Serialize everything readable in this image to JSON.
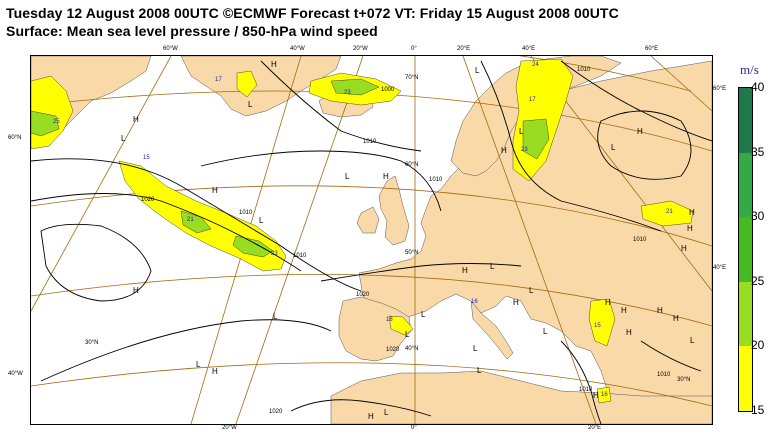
{
  "title_line1": "Tuesday 12 August 2008 00UTC ©ECMWF Forecast t+072 VT: Friday 15 August 2008 00UTC",
  "title_line2": "Surface: Mean sea level pressure / 850-hPa wind speed",
  "colors": {
    "land": "#fad9a8",
    "sea": "#ffffff",
    "isobar": "#000000",
    "graticule": "#a36b12",
    "wind_15_20": "#ffff00",
    "wind_20_25": "#99dd22",
    "wind_25_30": "#44bb22",
    "wind_30_35": "#33aa44",
    "wind_35_40": "#1f7a4a"
  },
  "legend": {
    "unit": "m/s",
    "levels": [
      "40",
      "35",
      "30",
      "25",
      "20",
      "15"
    ],
    "bands": [
      {
        "from": 35,
        "to": 40,
        "color": "#1f7a4a"
      },
      {
        "from": 30,
        "to": 35,
        "color": "#33aa44"
      },
      {
        "from": 25,
        "to": 30,
        "color": "#44bb22"
      },
      {
        "from": 20,
        "to": 25,
        "color": "#99dd22"
      },
      {
        "from": 15,
        "to": 20,
        "color": "#ffff00"
      }
    ]
  },
  "graticule_labels": {
    "top": [
      "60°W",
      "40°W",
      "20°W",
      "0°",
      "20°E",
      "40°E",
      "60°E"
    ],
    "left": [
      "60°N",
      "40°W"
    ],
    "right": [
      "60°E",
      "40°E"
    ],
    "bottom": [
      "20°W",
      "0°",
      "20°E"
    ],
    "inner": [
      "70°N",
      "60°N",
      "50°N",
      "40°N",
      "30°N",
      "30°N"
    ]
  },
  "pressure_centres": {
    "highs": [
      "H",
      "H",
      "H",
      "H",
      "H",
      "H",
      "H",
      "H",
      "H",
      "H",
      "H",
      "H",
      "H",
      "H",
      "H",
      "H",
      "H",
      "H",
      "H",
      "H"
    ],
    "lows": [
      "L",
      "L",
      "L",
      "L",
      "L",
      "L",
      "L",
      "L",
      "L",
      "L",
      "L",
      "L",
      "L",
      "L",
      "L",
      "L",
      "L",
      "L"
    ]
  },
  "isobar_labels": [
    "1010",
    "1000",
    "1010",
    "1010",
    "1020",
    "1010",
    "1020",
    "1010",
    "1020",
    "1020",
    "1010",
    "1010",
    "1010"
  ],
  "wind_value_labels": [
    "25",
    "17",
    "23",
    "21",
    "23",
    "15",
    "18",
    "16",
    "17",
    "23",
    "24",
    "21",
    "15",
    "16"
  ]
}
